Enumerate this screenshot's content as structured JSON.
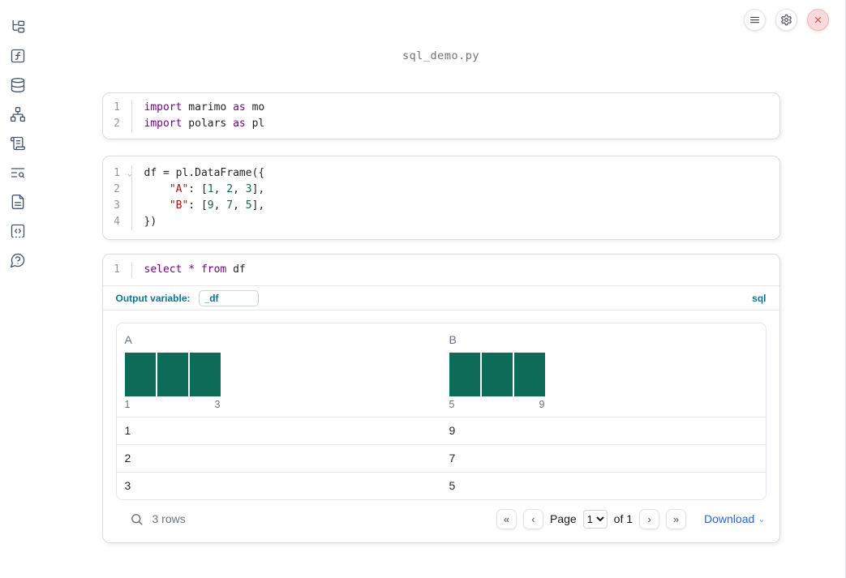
{
  "window": {
    "title": "sql_demo.py"
  },
  "sidebar": {
    "items": [
      {
        "name": "file-explorer"
      },
      {
        "name": "variables"
      },
      {
        "name": "data-sources"
      },
      {
        "name": "dependency-graph"
      },
      {
        "name": "logs"
      },
      {
        "name": "tracing"
      },
      {
        "name": "documentation"
      },
      {
        "name": "snippets"
      },
      {
        "name": "help"
      }
    ]
  },
  "controls": {
    "menu": "notebook-menu",
    "settings": "settings",
    "shutdown": "shutdown"
  },
  "cells": [
    {
      "type": "python",
      "lines": [
        {
          "num": "1",
          "tokens": [
            [
              "kw",
              "import"
            ],
            [
              "pl",
              " marimo "
            ],
            [
              "kw",
              "as"
            ],
            [
              "pl",
              " mo"
            ]
          ]
        },
        {
          "num": "2",
          "tokens": [
            [
              "kw",
              "import"
            ],
            [
              "pl",
              " polars "
            ],
            [
              "kw",
              "as"
            ],
            [
              "pl",
              " pl"
            ]
          ]
        }
      ]
    },
    {
      "type": "python",
      "lines": [
        {
          "num": "1",
          "fold": true,
          "tokens": [
            [
              "pl",
              "df = pl.DataFrame({"
            ]
          ]
        },
        {
          "num": "2",
          "tokens": [
            [
              "pl",
              "    "
            ],
            [
              "str",
              "\"A\""
            ],
            [
              "pl",
              ": ["
            ],
            [
              "num",
              "1"
            ],
            [
              "pl",
              ", "
            ],
            [
              "num",
              "2"
            ],
            [
              "pl",
              ", "
            ],
            [
              "num",
              "3"
            ],
            [
              "pl",
              "],"
            ]
          ]
        },
        {
          "num": "3",
          "tokens": [
            [
              "pl",
              "    "
            ],
            [
              "str",
              "\"B\""
            ],
            [
              "pl",
              ": ["
            ],
            [
              "num",
              "9"
            ],
            [
              "pl",
              ", "
            ],
            [
              "num",
              "7"
            ],
            [
              "pl",
              ", "
            ],
            [
              "num",
              "5"
            ],
            [
              "pl",
              "],"
            ]
          ]
        },
        {
          "num": "4",
          "tokens": [
            [
              "pl",
              "})"
            ]
          ]
        }
      ]
    }
  ],
  "sql_cell": {
    "lines": [
      {
        "num": "1",
        "tokens": [
          [
            "kw",
            "select"
          ],
          [
            "pl",
            " "
          ],
          [
            "kw",
            "*"
          ],
          [
            "pl",
            " "
          ],
          [
            "kw",
            "from"
          ],
          [
            "pl",
            " df"
          ]
        ]
      }
    ],
    "output_variable_label": "Output variable:",
    "output_variable_value": "_df",
    "language_badge": "sql"
  },
  "table": {
    "columns": [
      {
        "label": "A",
        "hist": {
          "type": "histogram",
          "bins": 3,
          "counts": [
            1,
            1,
            1
          ],
          "min_label": "1",
          "max_label": "3"
        }
      },
      {
        "label": "B",
        "hist": {
          "type": "histogram",
          "bins": 3,
          "counts": [
            1,
            1,
            1
          ],
          "min_label": "5",
          "max_label": "9"
        }
      }
    ],
    "rows": [
      [
        "1",
        "9"
      ],
      [
        "2",
        "7"
      ],
      [
        "3",
        "5"
      ]
    ],
    "footer": {
      "row_count": "3 rows",
      "page_label": "Page",
      "page_value": "1",
      "of_label": "of 1",
      "download_label": "Download"
    }
  },
  "icons": {
    "fold_chevron": "⌄",
    "first_page": "«",
    "prev_page": "‹",
    "next_page": "›",
    "last_page": "»",
    "download_chevron": "⌄"
  },
  "colors": {
    "histogram_bar": "#0E6B58",
    "sql_accent": "#0e7490",
    "keyword": "#770088",
    "string": "#aa1111",
    "number": "#116644",
    "download_link": "#2563eb",
    "shutdown_red": "#dd4550"
  }
}
